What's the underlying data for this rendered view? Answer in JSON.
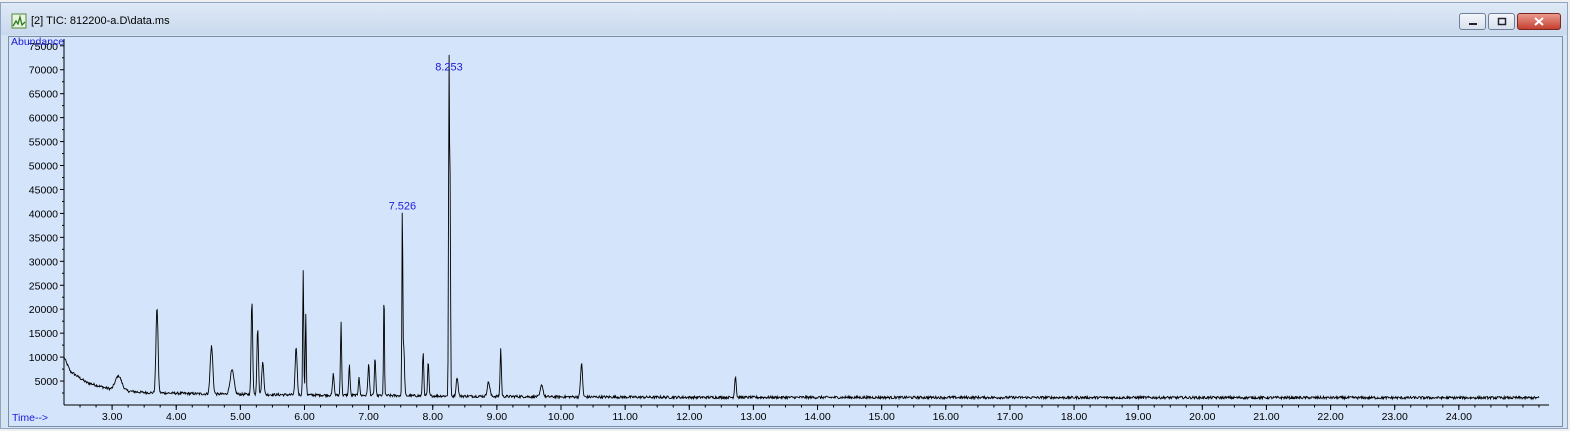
{
  "window": {
    "title": "[2] TIC: 812200-a.D\\data.ms",
    "icon": "chromatogram-app-icon",
    "controls": [
      "minimize-icon",
      "restore-icon",
      "close-icon"
    ]
  },
  "colors": {
    "plot_background": "#d4e4fa",
    "trace": "#000000",
    "label_blue": "#1a1adc"
  },
  "chart_data": {
    "type": "line",
    "ylabel": "Abundance",
    "xlabel": "Time-->",
    "xlim": [
      2.25,
      25.25
    ],
    "ylim": [
      0,
      76000
    ],
    "x_ticks": [
      "3.00",
      "4.00",
      "5.00",
      "6.00",
      "7.00",
      "8.00",
      "9.00",
      "10.00",
      "11.00",
      "12.00",
      "13.00",
      "14.00",
      "15.00",
      "16.00",
      "17.00",
      "18.00",
      "19.00",
      "20.00",
      "21.00",
      "22.00",
      "23.00",
      "24.00"
    ],
    "y_ticks": [
      "5000",
      "10000",
      "15000",
      "20000",
      "25000",
      "30000",
      "35000",
      "40000",
      "45000",
      "50000",
      "55000",
      "60000",
      "65000",
      "70000",
      "75000"
    ],
    "baseline": [
      [
        2.25,
        10000
      ],
      [
        2.35,
        7000
      ],
      [
        2.6,
        4700
      ],
      [
        3.0,
        3200
      ],
      [
        3.5,
        2600
      ],
      [
        4.5,
        2300
      ],
      [
        6.0,
        2100
      ],
      [
        8.0,
        1900
      ],
      [
        10.0,
        1700
      ],
      [
        12.0,
        1600
      ],
      [
        25.25,
        1500
      ]
    ],
    "peaks": [
      {
        "rt": 3.1,
        "height": 3000,
        "width": 0.05
      },
      {
        "rt": 3.7,
        "height": 18000,
        "width": 0.016
      },
      {
        "rt": 4.55,
        "height": 10000,
        "width": 0.02
      },
      {
        "rt": 4.87,
        "height": 5000,
        "width": 0.03
      },
      {
        "rt": 5.18,
        "height": 19500,
        "width": 0.012
      },
      {
        "rt": 5.27,
        "height": 14000,
        "width": 0.012
      },
      {
        "rt": 5.35,
        "height": 7000,
        "width": 0.015
      },
      {
        "rt": 5.87,
        "height": 10000,
        "width": 0.015
      },
      {
        "rt": 5.98,
        "height": 26000,
        "width": 0.008
      },
      {
        "rt": 6.02,
        "height": 17000,
        "width": 0.008
      },
      {
        "rt": 6.45,
        "height": 4500,
        "width": 0.012
      },
      {
        "rt": 6.57,
        "height": 15500,
        "width": 0.009
      },
      {
        "rt": 6.7,
        "height": 6500,
        "width": 0.01
      },
      {
        "rt": 6.85,
        "height": 4000,
        "width": 0.01
      },
      {
        "rt": 7.0,
        "height": 6500,
        "width": 0.012
      },
      {
        "rt": 7.1,
        "height": 8000,
        "width": 0.01
      },
      {
        "rt": 7.24,
        "height": 22000,
        "width": 0.007
      },
      {
        "rt": 7.526,
        "height": 40000,
        "width": 0.007
      },
      {
        "rt": 7.55,
        "height": 10000,
        "width": 0.01
      },
      {
        "rt": 7.85,
        "height": 9000,
        "width": 0.01
      },
      {
        "rt": 7.93,
        "height": 7000,
        "width": 0.01
      },
      {
        "rt": 8.253,
        "height": 69000,
        "width": 0.007
      },
      {
        "rt": 8.27,
        "height": 45000,
        "width": 0.007
      },
      {
        "rt": 8.38,
        "height": 4000,
        "width": 0.015
      },
      {
        "rt": 8.87,
        "height": 3000,
        "width": 0.02
      },
      {
        "rt": 9.06,
        "height": 10000,
        "width": 0.01
      },
      {
        "rt": 9.7,
        "height": 2500,
        "width": 0.02
      },
      {
        "rt": 10.32,
        "height": 7000,
        "width": 0.015
      },
      {
        "rt": 12.72,
        "height": 4500,
        "width": 0.012
      }
    ],
    "annotations": [
      {
        "label": "8.253",
        "x": 8.253,
        "y": 69000
      },
      {
        "label": "7.526",
        "x": 7.526,
        "y": 40000
      }
    ],
    "grid": false,
    "legend": "none"
  }
}
